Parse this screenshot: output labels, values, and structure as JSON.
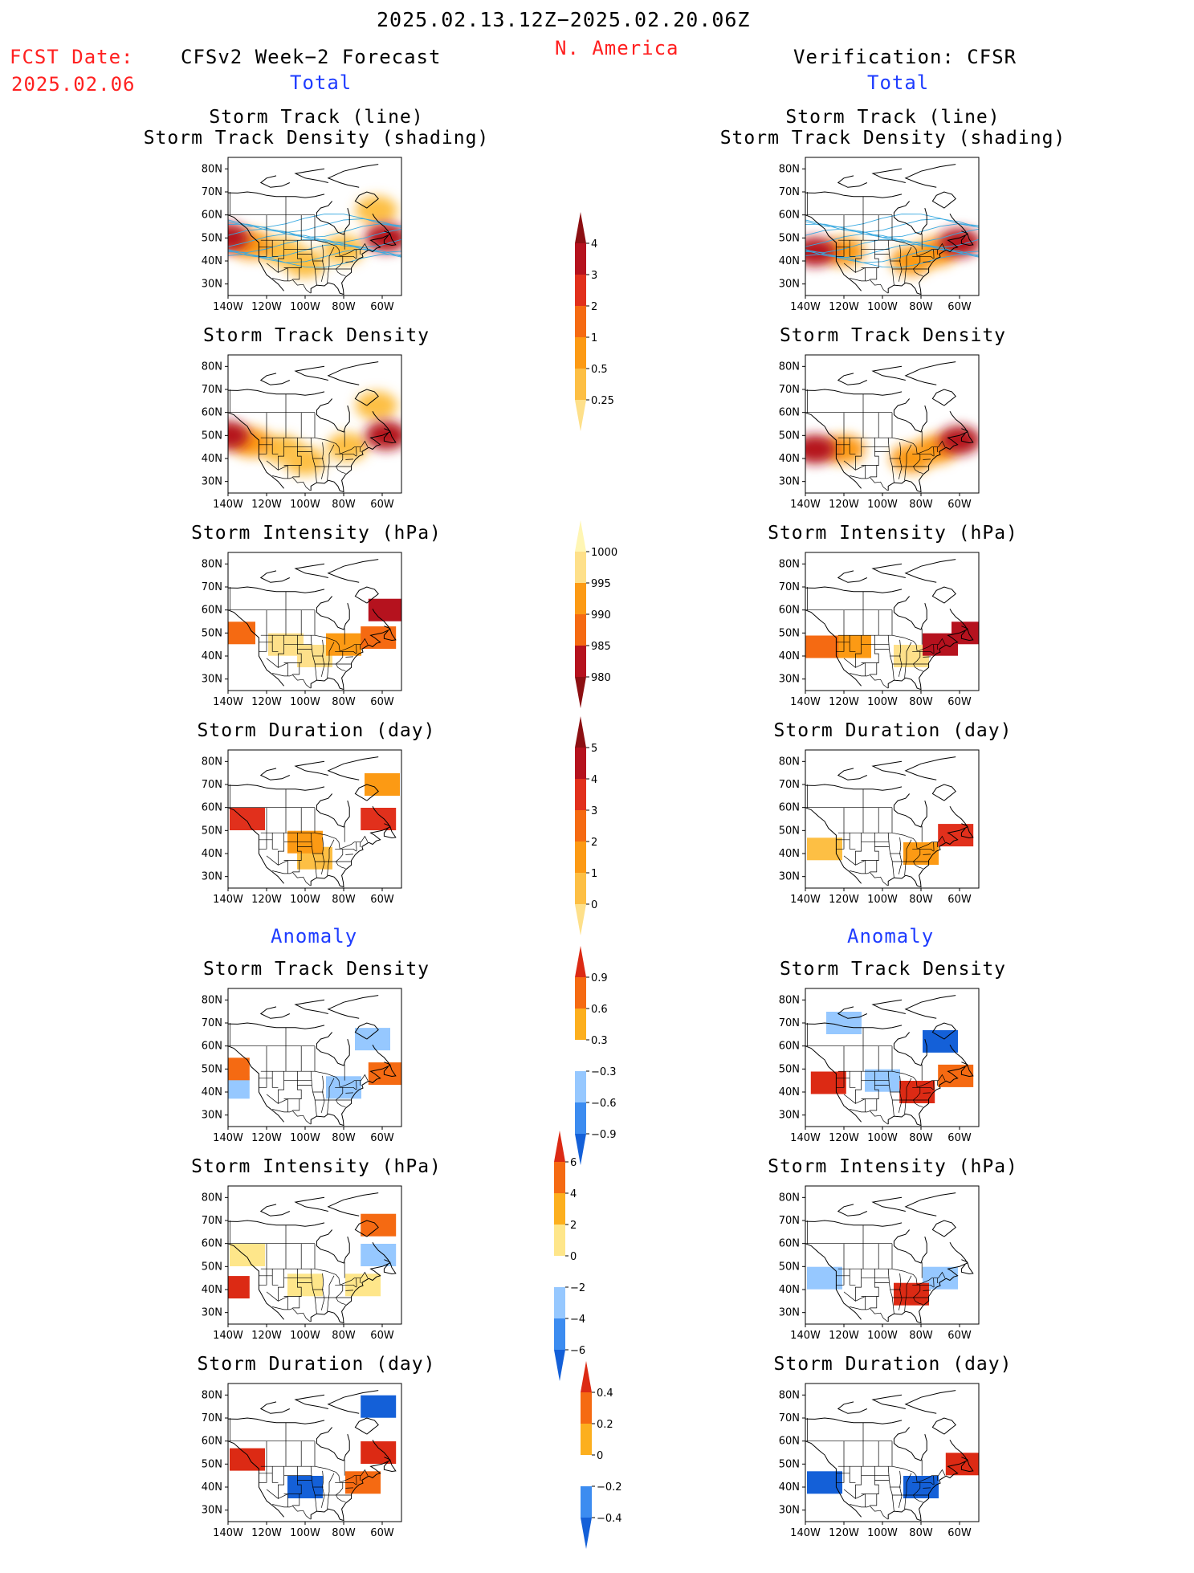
{
  "header": {
    "date_range": "2025.02.13.12Z−2025.02.20.06Z",
    "region": "N. America",
    "fcst_date_label": "FCST Date:",
    "fcst_date_value": "2025.02.06",
    "left_model": "CFSv2 Week−2 Forecast",
    "right_model": "Verification: CFSR",
    "total_label": "Total",
    "anomaly_label": "Anomaly"
  },
  "panel_titles": {
    "track_line_1": "Storm Track (line)",
    "track_line_2": "Storm Track Density (shading)",
    "density": "Storm Track Density",
    "intensity": "Storm Intensity (hPa)",
    "duration": "Storm Duration (day)"
  },
  "axes": {
    "lon_ticks": [
      "140W",
      "120W",
      "100W",
      "80W",
      "60W"
    ],
    "lat_ticks": [
      "80N",
      "70N",
      "60N",
      "50N",
      "40N",
      "30N"
    ]
  },
  "colors": {
    "red_text": "#ff2020",
    "blue_text": "#1e3cff",
    "track_line": "#39a9e0",
    "warm_scale": [
      "#fff6b4",
      "#fee08a",
      "#fdbf44",
      "#fc9a14",
      "#f56a12",
      "#e1301c",
      "#b5121e",
      "#8c0f12"
    ],
    "diverging_scale": [
      "#1460d8",
      "#3c8cf0",
      "#96c8ff",
      "#bdeefc",
      "#ffffff",
      "#fee68a",
      "#fcaf1e",
      "#f56a12",
      "#dc2a14"
    ]
  },
  "colorbars": {
    "density_total": {
      "labels": [
        "4",
        "3",
        "2",
        "1",
        "0.5",
        "0.25"
      ]
    },
    "intensity_total": {
      "labels": [
        "1000",
        "995",
        "990",
        "985",
        "980"
      ]
    },
    "duration_total": {
      "labels": [
        "5",
        "4",
        "3",
        "2",
        "1",
        "0"
      ]
    },
    "density_anom": {
      "labels": [
        "0.9",
        "0.6",
        "0.3",
        "−0.3",
        "−0.6",
        "−0.9"
      ]
    },
    "intensity_anom": {
      "labels": [
        "6",
        "4",
        "2",
        "0",
        "−2",
        "−4",
        "−6"
      ]
    },
    "duration_anom": {
      "labels": [
        "0.4",
        "0.2",
        "0",
        "−0.2",
        "−0.4"
      ]
    }
  },
  "chart_data": {
    "type": "heatmap",
    "title": "2025.02.13.12Z−2025.02.20.06Z N. America",
    "region": "N. America",
    "lon_range": [
      -140,
      -50
    ],
    "lat_range": [
      25,
      85
    ],
    "panels": [
      {
        "id": "fc-track-total",
        "column": "CFSv2 Week−2 Forecast",
        "section": "Total",
        "variable": "Storm Track (line) / Storm Track Density (shading)",
        "tracks": true,
        "centers": [
          {
            "lon": -140,
            "lat": 50,
            "value": 3.5
          },
          {
            "lon": -128,
            "lat": 47,
            "value": 2
          },
          {
            "lon": -112,
            "lat": 44,
            "value": 1
          },
          {
            "lon": -100,
            "lat": 39,
            "value": 1
          },
          {
            "lon": -80,
            "lat": 45,
            "value": 1
          },
          {
            "lon": -58,
            "lat": 50,
            "value": 3.5
          },
          {
            "lon": -63,
            "lat": 62,
            "value": 1.5
          }
        ]
      },
      {
        "id": "vf-track-total",
        "column": "Verification: CFSR",
        "section": "Total",
        "variable": "Storm Track (line) / Storm Track Density (shading)",
        "tracks": true,
        "centers": [
          {
            "lon": -135,
            "lat": 44,
            "value": 3.5
          },
          {
            "lon": -120,
            "lat": 44,
            "value": 2
          },
          {
            "lon": -85,
            "lat": 40,
            "value": 2
          },
          {
            "lon": -72,
            "lat": 44,
            "value": 2.5
          },
          {
            "lon": -60,
            "lat": 48,
            "value": 3.5
          }
        ]
      },
      {
        "id": "fc-density-total",
        "column": "CFSv2 Week−2 Forecast",
        "section": "Total",
        "variable": "Storm Track Density",
        "centers": [
          {
            "lon": -140,
            "lat": 50,
            "value": 3.5
          },
          {
            "lon": -128,
            "lat": 47,
            "value": 2
          },
          {
            "lon": -112,
            "lat": 44,
            "value": 1
          },
          {
            "lon": -100,
            "lat": 39,
            "value": 1
          },
          {
            "lon": -78,
            "lat": 45,
            "value": 1
          },
          {
            "lon": -58,
            "lat": 50,
            "value": 3.5
          },
          {
            "lon": -63,
            "lat": 63,
            "value": 1.5
          }
        ]
      },
      {
        "id": "vf-density-total",
        "column": "Verification: CFSR",
        "section": "Total",
        "variable": "Storm Track Density",
        "centers": [
          {
            "lon": -135,
            "lat": 44,
            "value": 3.5
          },
          {
            "lon": -120,
            "lat": 44,
            "value": 2
          },
          {
            "lon": -85,
            "lat": 40,
            "value": 2
          },
          {
            "lon": -72,
            "lat": 44,
            "value": 2.5
          },
          {
            "lon": -60,
            "lat": 48,
            "value": 3.5
          }
        ]
      },
      {
        "id": "fc-intensity-total",
        "column": "CFSv2 Week−2 Forecast",
        "section": "Total",
        "variable": "Storm Intensity (hPa)",
        "centers": [
          {
            "lon": -135,
            "lat": 50,
            "value": 988
          },
          {
            "lon": -110,
            "lat": 45,
            "value": 996
          },
          {
            "lon": -95,
            "lat": 40,
            "value": 998
          },
          {
            "lon": -80,
            "lat": 45,
            "value": 994
          },
          {
            "lon": -58,
            "lat": 60,
            "value": 982
          },
          {
            "lon": -62,
            "lat": 48,
            "value": 986
          }
        ]
      },
      {
        "id": "vf-intensity-total",
        "column": "Verification: CFSR",
        "section": "Total",
        "variable": "Storm Intensity (hPa)",
        "centers": [
          {
            "lon": -132,
            "lat": 44,
            "value": 988
          },
          {
            "lon": -115,
            "lat": 44,
            "value": 992
          },
          {
            "lon": -85,
            "lat": 40,
            "value": 996
          },
          {
            "lon": -70,
            "lat": 45,
            "value": 984
          },
          {
            "lon": -55,
            "lat": 50,
            "value": 982
          }
        ]
      },
      {
        "id": "fc-duration-total",
        "column": "CFSv2 Week−2 Forecast",
        "section": "Total",
        "variable": "Storm Duration (day)",
        "centers": [
          {
            "lon": -130,
            "lat": 55,
            "value": 3
          },
          {
            "lon": -100,
            "lat": 45,
            "value": 2
          },
          {
            "lon": -95,
            "lat": 38,
            "value": 1.5
          },
          {
            "lon": -62,
            "lat": 55,
            "value": 3
          },
          {
            "lon": -60,
            "lat": 70,
            "value": 2.5
          }
        ]
      },
      {
        "id": "vf-duration-total",
        "column": "Verification: CFSR",
        "section": "Total",
        "variable": "Storm Duration (day)",
        "centers": [
          {
            "lon": -130,
            "lat": 42,
            "value": 1
          },
          {
            "lon": -80,
            "lat": 40,
            "value": 2.5
          },
          {
            "lon": -62,
            "lat": 48,
            "value": 3
          }
        ]
      },
      {
        "id": "fc-density-anom",
        "column": "CFSv2 Week−2 Forecast",
        "section": "Anomaly",
        "variable": "Storm Track Density",
        "centers": [
          {
            "lon": -138,
            "lat": 50,
            "value": 0.8
          },
          {
            "lon": -138,
            "lat": 42,
            "value": -0.3
          },
          {
            "lon": -58,
            "lat": 48,
            "value": 0.7
          },
          {
            "lon": -80,
            "lat": 42,
            "value": -0.3
          },
          {
            "lon": -65,
            "lat": 63,
            "value": -0.3
          }
        ]
      },
      {
        "id": "vf-density-anom",
        "column": "Verification: CFSR",
        "section": "Anomaly",
        "variable": "Storm Track Density",
        "centers": [
          {
            "lon": -120,
            "lat": 70,
            "value": -0.35
          },
          {
            "lon": -70,
            "lat": 62,
            "value": -0.9
          },
          {
            "lon": -128,
            "lat": 44,
            "value": 0.9
          },
          {
            "lon": -82,
            "lat": 40,
            "value": 0.9
          },
          {
            "lon": -62,
            "lat": 47,
            "value": 0.8
          },
          {
            "lon": -100,
            "lat": 45,
            "value": -0.35
          }
        ]
      },
      {
        "id": "fc-intensity-anom",
        "column": "CFSv2 Week−2 Forecast",
        "section": "Anomaly",
        "variable": "Storm Intensity (hPa)",
        "centers": [
          {
            "lon": -130,
            "lat": 55,
            "value": 2
          },
          {
            "lon": -100,
            "lat": 42,
            "value": 3
          },
          {
            "lon": -62,
            "lat": 55,
            "value": -4
          },
          {
            "lon": -62,
            "lat": 68,
            "value": 4
          },
          {
            "lon": -138,
            "lat": 41,
            "value": 6
          },
          {
            "lon": -70,
            "lat": 42,
            "value": 2
          }
        ]
      },
      {
        "id": "vf-intensity-anom",
        "column": "Verification: CFSR",
        "section": "Anomaly",
        "variable": "Storm Intensity (hPa)",
        "centers": [
          {
            "lon": -130,
            "lat": 45,
            "value": -4
          },
          {
            "lon": -70,
            "lat": 45,
            "value": -4
          },
          {
            "lon": -85,
            "lat": 38,
            "value": 6
          }
        ]
      },
      {
        "id": "fc-duration-anom",
        "column": "CFSv2 Week−2 Forecast",
        "section": "Anomaly",
        "variable": "Storm Duration (day)",
        "centers": [
          {
            "lon": -130,
            "lat": 52,
            "value": 0.4
          },
          {
            "lon": -100,
            "lat": 40,
            "value": -0.4
          },
          {
            "lon": -62,
            "lat": 75,
            "value": -0.4
          },
          {
            "lon": -62,
            "lat": 55,
            "value": 0.4
          },
          {
            "lon": -70,
            "lat": 42,
            "value": 0.2
          }
        ]
      },
      {
        "id": "vf-duration-anom",
        "column": "Verification: CFSR",
        "section": "Anomaly",
        "variable": "Storm Duration (day)",
        "centers": [
          {
            "lon": -130,
            "lat": 42,
            "value": -0.4
          },
          {
            "lon": -80,
            "lat": 40,
            "value": -0.4
          },
          {
            "lon": -58,
            "lat": 50,
            "value": 0.4
          }
        ]
      }
    ]
  }
}
